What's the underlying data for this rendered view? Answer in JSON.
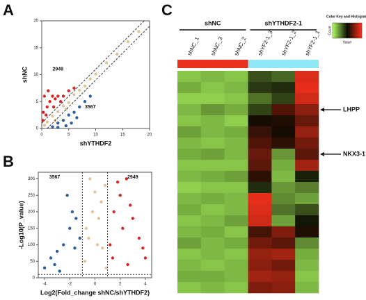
{
  "chart_data": [
    {
      "type": "scatter",
      "panel": "A",
      "xlabel": "shYTHDF2",
      "ylabel": "shNC",
      "xlim": [
        0,
        20
      ],
      "ylim": [
        0,
        20
      ],
      "xticks": [
        0,
        5,
        10,
        15,
        20
      ],
      "yticks": [
        0,
        5,
        10,
        15,
        20
      ],
      "ref_lines": [
        {
          "slope": 1,
          "intercept": 1
        },
        {
          "slope": 1,
          "intercept": -1
        }
      ],
      "annotations": [
        {
          "text": "2949",
          "x": 3,
          "y": 11
        },
        {
          "text": "3567",
          "x": 9,
          "y": 4
        }
      ],
      "series": [
        {
          "color": "#d62728",
          "x": [
            0.3,
            0.5,
            1,
            1.5,
            2,
            2.5,
            3,
            0.2,
            1.2,
            4,
            5,
            0.8,
            2.2,
            3.5,
            6
          ],
          "y": [
            3,
            6,
            4,
            5,
            6,
            5.5,
            6,
            1.5,
            7,
            6,
            7,
            2.5,
            4,
            5,
            7.5
          ]
        },
        {
          "color": "#2c5f9e",
          "x": [
            2,
            3,
            4,
            5,
            6,
            7,
            8,
            4.5,
            3,
            6.5,
            9,
            5.5
          ],
          "y": [
            0.3,
            1,
            1.5,
            2.5,
            3,
            4,
            5,
            0.5,
            0.2,
            2,
            6,
            1
          ]
        },
        {
          "color": "#e3c49a",
          "x": [
            0.5,
            1,
            2,
            3,
            4,
            5,
            6,
            7,
            8,
            9,
            10,
            12,
            14,
            16,
            18,
            2.5,
            4.5
          ],
          "y": [
            0.6,
            1.2,
            2.3,
            3.1,
            4.2,
            4.8,
            6.3,
            7.1,
            7.9,
            9.2,
            10.1,
            12.2,
            13.8,
            16.1,
            18,
            1.5,
            3.6
          ]
        }
      ]
    },
    {
      "type": "scatter",
      "panel": "B",
      "xlabel": "Log2(Fold_change shNC/shYTHDF2)",
      "ylabel": "-Log10(P_value)",
      "xlim": [
        -4.5,
        4.5
      ],
      "ylim": [
        0,
        320
      ],
      "xticks": [
        -4,
        -2,
        0,
        2,
        4
      ],
      "yticks": [
        0,
        50,
        100,
        150,
        200,
        250,
        300
      ],
      "vlines": [
        -1,
        1
      ],
      "hline": 10,
      "annotations": [
        {
          "text": "3567",
          "x": -3.2,
          "y": 305
        },
        {
          "text": "2949",
          "x": 3,
          "y": 305
        }
      ],
      "series": [
        {
          "color": "#2c5f9e",
          "x": [
            -4,
            -3.5,
            -3,
            -2.5,
            -2,
            -1.8,
            -1.5,
            -1.2,
            -2.2,
            -3.2,
            -1.6,
            -2.8
          ],
          "y": [
            30,
            60,
            80,
            100,
            150,
            200,
            180,
            120,
            250,
            40,
            90,
            20
          ]
        },
        {
          "color": "#d62728",
          "x": [
            1.2,
            1.5,
            2,
            2.5,
            3,
            3.5,
            4,
            1.8,
            2.2,
            2.8,
            3.8,
            1.4,
            2.6
          ],
          "y": [
            100,
            200,
            250,
            300,
            180,
            120,
            60,
            290,
            150,
            220,
            90,
            60,
            40
          ]
        },
        {
          "color": "#e3c49a",
          "x": [
            -0.8,
            -0.5,
            -0.2,
            0,
            0.3,
            0.6,
            0.9,
            -0.4,
            0.2,
            0.5,
            -0.7,
            0.8
          ],
          "y": [
            50,
            120,
            200,
            260,
            180,
            90,
            30,
            300,
            100,
            230,
            150,
            280
          ]
        }
      ]
    },
    {
      "type": "heatmap",
      "panel": "C",
      "categories": [
        "shNC_1",
        "shNC_3",
        "shNC_2",
        "shYF2-1_3",
        "shYF2-1_2",
        "shYF2-1_1"
      ],
      "groups": [
        {
          "label": "shNC",
          "start": 0,
          "end": 2,
          "color": "#e8321e"
        },
        {
          "label": "shYTHDF2-1",
          "start": 3,
          "end": 5,
          "color": "#8fe8f5"
        }
      ],
      "zlim": [
        -2,
        2
      ],
      "colormap": [
        "#a6f25a",
        "#0a0a00",
        "#f2301c"
      ],
      "key_title": "Color Key and Histogram",
      "key_ylabel": "Count",
      "key_xlabel": "Value",
      "row_annotations": [
        {
          "label": "LHPP",
          "row": 3
        },
        {
          "label": "NKX3-1",
          "row": 7
        }
      ],
      "values": [
        [
          -1.6,
          -1.5,
          -1.6,
          -0.6,
          -0.8,
          1.8
        ],
        [
          -1.4,
          -1.6,
          -1.5,
          -0.4,
          -0.3,
          1.9
        ],
        [
          -1.7,
          -1.7,
          -1.6,
          -0.9,
          -0.5,
          1.7
        ],
        [
          -1.5,
          -1.2,
          -1.4,
          -0.5,
          0.6,
          1.1
        ],
        [
          -1.6,
          -1.5,
          -1.7,
          0.1,
          0.2,
          0.8
        ],
        [
          -1.3,
          -1.5,
          -1.4,
          0.4,
          0.1,
          1.2
        ],
        [
          -1.5,
          -1.6,
          -1.5,
          0.6,
          0.3,
          0.9
        ],
        [
          -1.4,
          -1.3,
          -1.5,
          0.8,
          -1.2,
          0.7
        ],
        [
          -1.6,
          -1.6,
          -1.6,
          0.7,
          -1.4,
          1.3
        ],
        [
          -1.5,
          -1.4,
          -1.3,
          0.3,
          -1.5,
          -0.2
        ],
        [
          -1.7,
          -1.6,
          -1.6,
          -0.3,
          -1.2,
          -1.0
        ],
        [
          -1.5,
          -1.4,
          -1.5,
          1.9,
          -1.1,
          -1.3
        ],
        [
          -1.4,
          -1.6,
          -1.5,
          1.8,
          -0.9,
          -0.6
        ],
        [
          -1.6,
          -1.5,
          -1.3,
          1.7,
          -1.3,
          -0.1
        ],
        [
          -1.5,
          -1.4,
          -1.6,
          0.5,
          1.0,
          0.2
        ],
        [
          -1.3,
          -1.5,
          -1.4,
          0.9,
          0.7,
          -1.1
        ],
        [
          -1.6,
          -1.5,
          -1.6,
          1.2,
          1.3,
          -1.4
        ],
        [
          -1.5,
          -1.6,
          -1.5,
          1.1,
          0.9,
          -1.5
        ],
        [
          -1.4,
          -1.4,
          -1.5,
          1.3,
          1.2,
          -1.6
        ],
        [
          -1.6,
          -1.5,
          -1.6,
          1.0,
          1.1,
          -1.5
        ]
      ]
    }
  ]
}
